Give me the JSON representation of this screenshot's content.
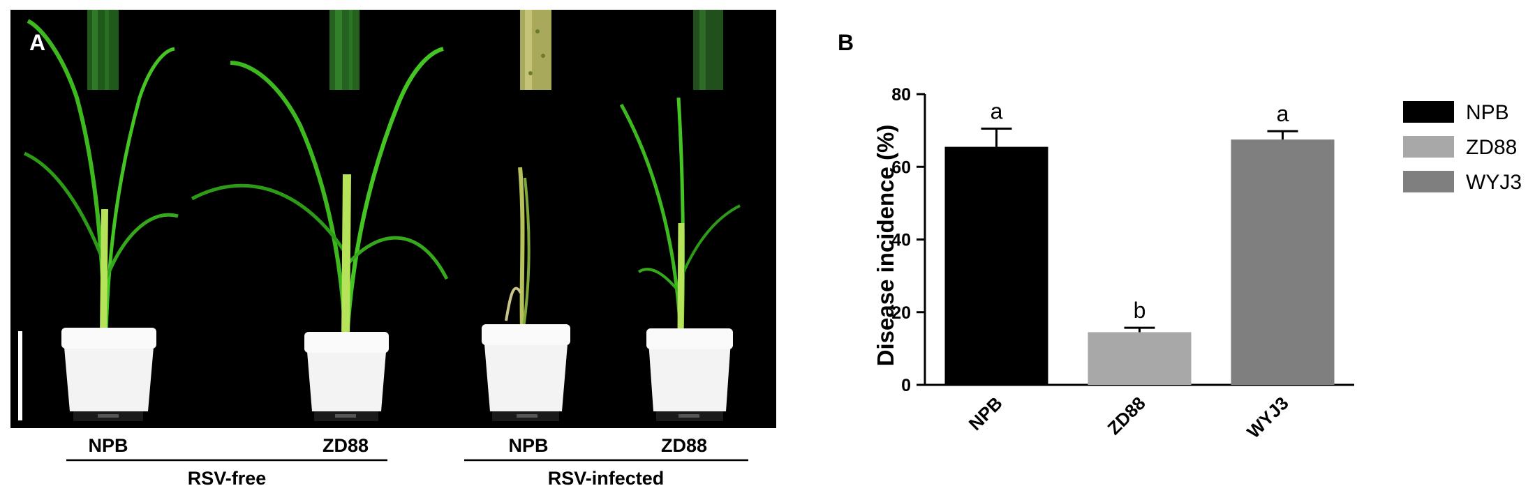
{
  "panel_a": {
    "label": "A",
    "plants": [
      {
        "label": "NPB",
        "condition": "healthy"
      },
      {
        "label": "ZD88",
        "condition": "healthy"
      },
      {
        "label": "NPB",
        "condition": "infected"
      },
      {
        "label": "ZD88",
        "condition": "infected"
      }
    ],
    "groups": [
      {
        "label": "RSV-free"
      },
      {
        "label": "RSV-infected"
      }
    ],
    "colors": {
      "background": "#000000",
      "leaf_green": "#3db81f",
      "leaf_light": "#b6e35a",
      "infected_leaf": "#c8c48a",
      "pot": "#f3f3f3"
    }
  },
  "chart_data": {
    "type": "bar",
    "panel_label": "B",
    "categories": [
      "NPB",
      "ZD88",
      "WYJ3"
    ],
    "values": [
      65.5,
      14.5,
      67.5
    ],
    "errors": [
      5,
      1.2,
      2.3
    ],
    "significance": [
      "a",
      "b",
      "a"
    ],
    "ylabel": "Disease incidence (%)",
    "xlabel": "",
    "ylim": [
      0,
      80
    ],
    "yticks": [
      0,
      20,
      40,
      60,
      80
    ],
    "grid": false,
    "legend": {
      "placement": "right",
      "entries": [
        {
          "name": "NPB",
          "color": "#000000"
        },
        {
          "name": "ZD88",
          "color": "#a8a8a8"
        },
        {
          "name": "WYJ3",
          "color": "#7f7f7f"
        }
      ]
    },
    "colors": [
      "#000000",
      "#a8a8a8",
      "#7f7f7f"
    ]
  }
}
